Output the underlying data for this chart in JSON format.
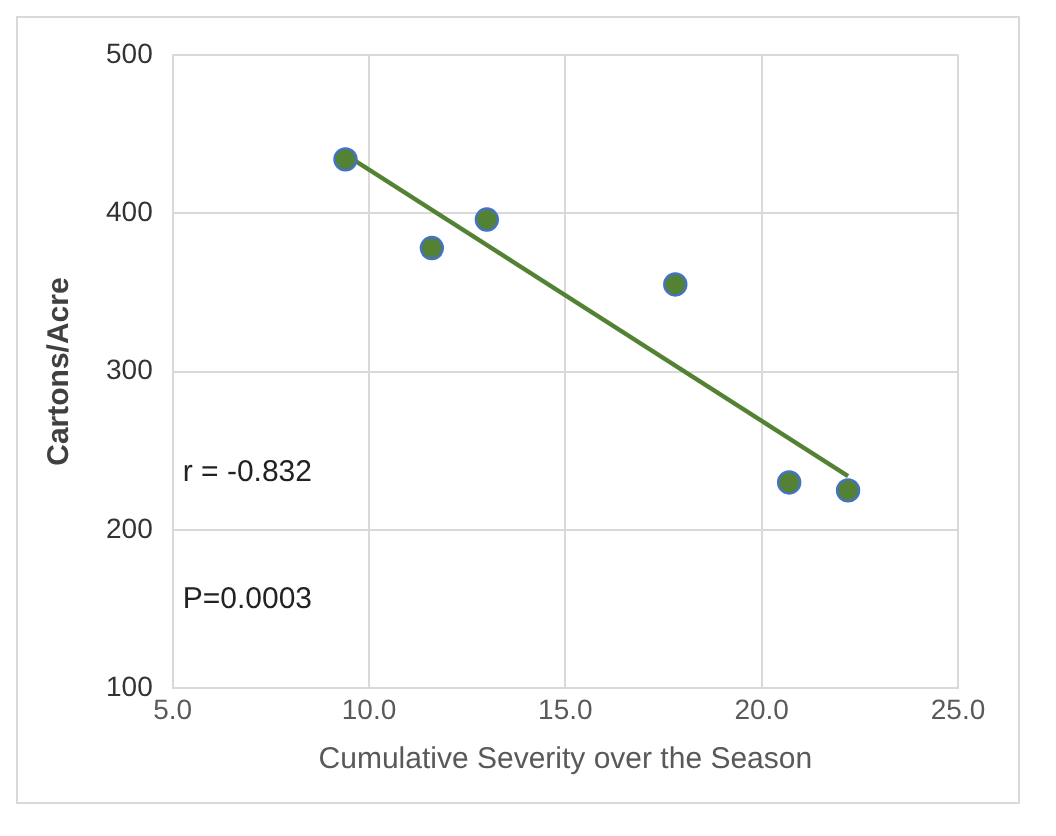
{
  "chart_data": {
    "type": "scatter",
    "xlabel": "Cumulative Severity over the Season",
    "ylabel": "Cartons/Acre",
    "x": [
      9.4,
      11.6,
      13.0,
      17.8,
      20.7,
      22.2
    ],
    "series": [
      {
        "color": "#548235",
        "marker": "circle",
        "values": [
          434,
          378,
          396,
          355,
          230,
          225
        ]
      },
      {
        "type": "line",
        "color": "#548235",
        "marker": "none",
        "x": [
          9.4,
          22.2
        ],
        "values": [
          437,
          234
        ]
      }
    ],
    "xlim": [
      5,
      25
    ],
    "xticks": [
      {
        "value": 5,
        "label": "5.0"
      },
      {
        "value": 10,
        "label": "10.0"
      },
      {
        "value": 15,
        "label": "15.0"
      },
      {
        "value": 20,
        "label": "20.0"
      },
      {
        "value": 25,
        "label": "25.0"
      }
    ],
    "ylim": [
      100,
      500
    ],
    "yticks": [
      100,
      200,
      300,
      400,
      500
    ],
    "grid": true,
    "legend": false,
    "annotations": [
      "r = -0.832",
      "P=0.0003"
    ]
  }
}
